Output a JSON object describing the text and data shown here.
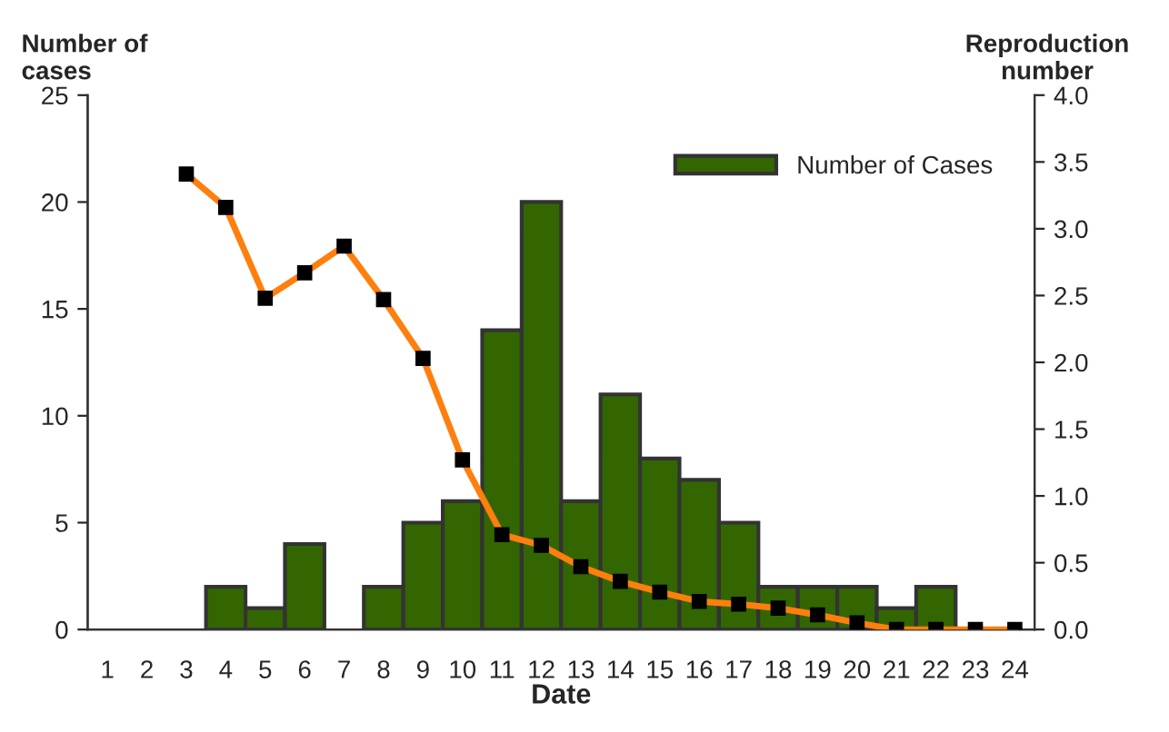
{
  "chart_data": {
    "type": "bar",
    "xlabel": "Date",
    "ylabel": "Number of\ncases",
    "y2label": "Reproduction\nnumber",
    "categories": [
      "1",
      "2",
      "3",
      "4",
      "5",
      "6",
      "7",
      "8",
      "9",
      "10",
      "11",
      "12",
      "13",
      "14",
      "15",
      "16",
      "17",
      "18",
      "19",
      "20",
      "21",
      "22",
      "23",
      "24"
    ],
    "series": [
      {
        "name": "Number of Cases",
        "color": "#336600",
        "values": [
          0,
          0,
          0,
          2,
          1,
          4,
          0,
          2,
          5,
          6,
          14,
          20,
          6,
          11,
          8,
          7,
          5,
          2,
          2,
          2,
          1,
          2,
          0,
          0
        ]
      },
      {
        "type": "line",
        "axis": "y2",
        "color": "#ff7f0e",
        "marker": "square",
        "values": [
          null,
          null,
          3.41,
          3.16,
          2.48,
          2.67,
          2.87,
          2.47,
          2.03,
          1.27,
          0.71,
          0.63,
          0.47,
          0.36,
          0.28,
          0.21,
          0.19,
          0.16,
          0.11,
          0.05,
          0,
          0,
          0,
          0
        ]
      }
    ],
    "ylim": [
      0,
      25
    ],
    "yticks": [
      0,
      5,
      10,
      15,
      20,
      25
    ],
    "y2lim": [
      0,
      4
    ],
    "y2ticks": [
      {
        "value": 0,
        "label": "0.0"
      },
      {
        "value": 0.5,
        "label": "0.5"
      },
      {
        "value": 1,
        "label": "1.0"
      },
      {
        "value": 1.5,
        "label": "1.5"
      },
      {
        "value": 2,
        "label": "2.0"
      },
      {
        "value": 2.5,
        "label": "2.5"
      },
      {
        "value": 3,
        "label": "3.0"
      },
      {
        "value": 3.5,
        "label": "3.5"
      },
      {
        "value": 4,
        "label": "4.0"
      }
    ],
    "legend": "top right",
    "grid": false
  }
}
